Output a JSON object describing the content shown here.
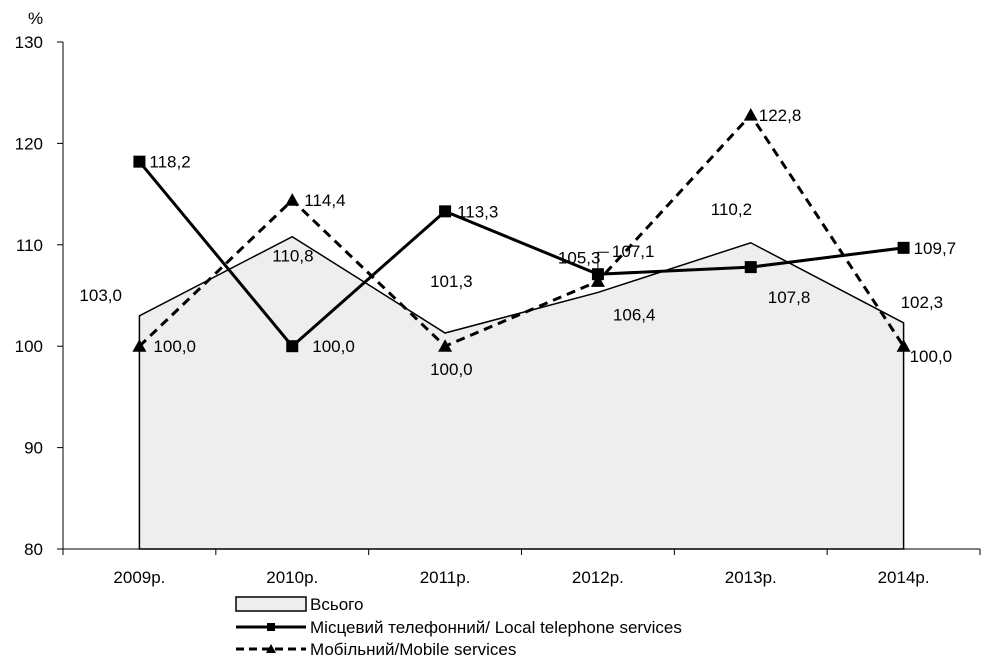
{
  "chart_data": {
    "type": "line",
    "title": "",
    "xlabel": "",
    "ylabel": "%",
    "ylim": [
      80,
      130
    ],
    "yticks": [
      80,
      90,
      100,
      110,
      120,
      130
    ],
    "categories": [
      "2009р.",
      "2010р.",
      "2011р.",
      "2012р.",
      "2013р.",
      "2014р."
    ],
    "grid": false,
    "legend_position": "bottom",
    "series": [
      {
        "name": "Всього",
        "style": "area",
        "color": "#000000",
        "fill": "#eeeeee",
        "values": [
          103.0,
          110.8,
          101.3,
          105.3,
          110.2,
          102.3
        ],
        "labels": [
          "103,0",
          "110,8",
          "101,3",
          "105,3",
          "110,2",
          "102,3"
        ]
      },
      {
        "name": "Місцевий телефонний/ Local telephone services",
        "style": "solid",
        "marker": "square",
        "color": "#000000",
        "values": [
          118.2,
          100.0,
          113.3,
          107.1,
          107.8,
          109.7
        ],
        "labels": [
          "118,2",
          "100,0",
          "113,3",
          "107,1",
          "107,8",
          "109,7"
        ]
      },
      {
        "name": "Мобільний/Mobile services",
        "style": "dashed",
        "marker": "triangle",
        "color": "#000000",
        "values": [
          100.0,
          114.4,
          100.0,
          106.4,
          122.8,
          100.0
        ],
        "labels": [
          "100,0",
          "114,4",
          "100,0",
          "106,4",
          "122,8",
          "100,0"
        ]
      }
    ]
  }
}
